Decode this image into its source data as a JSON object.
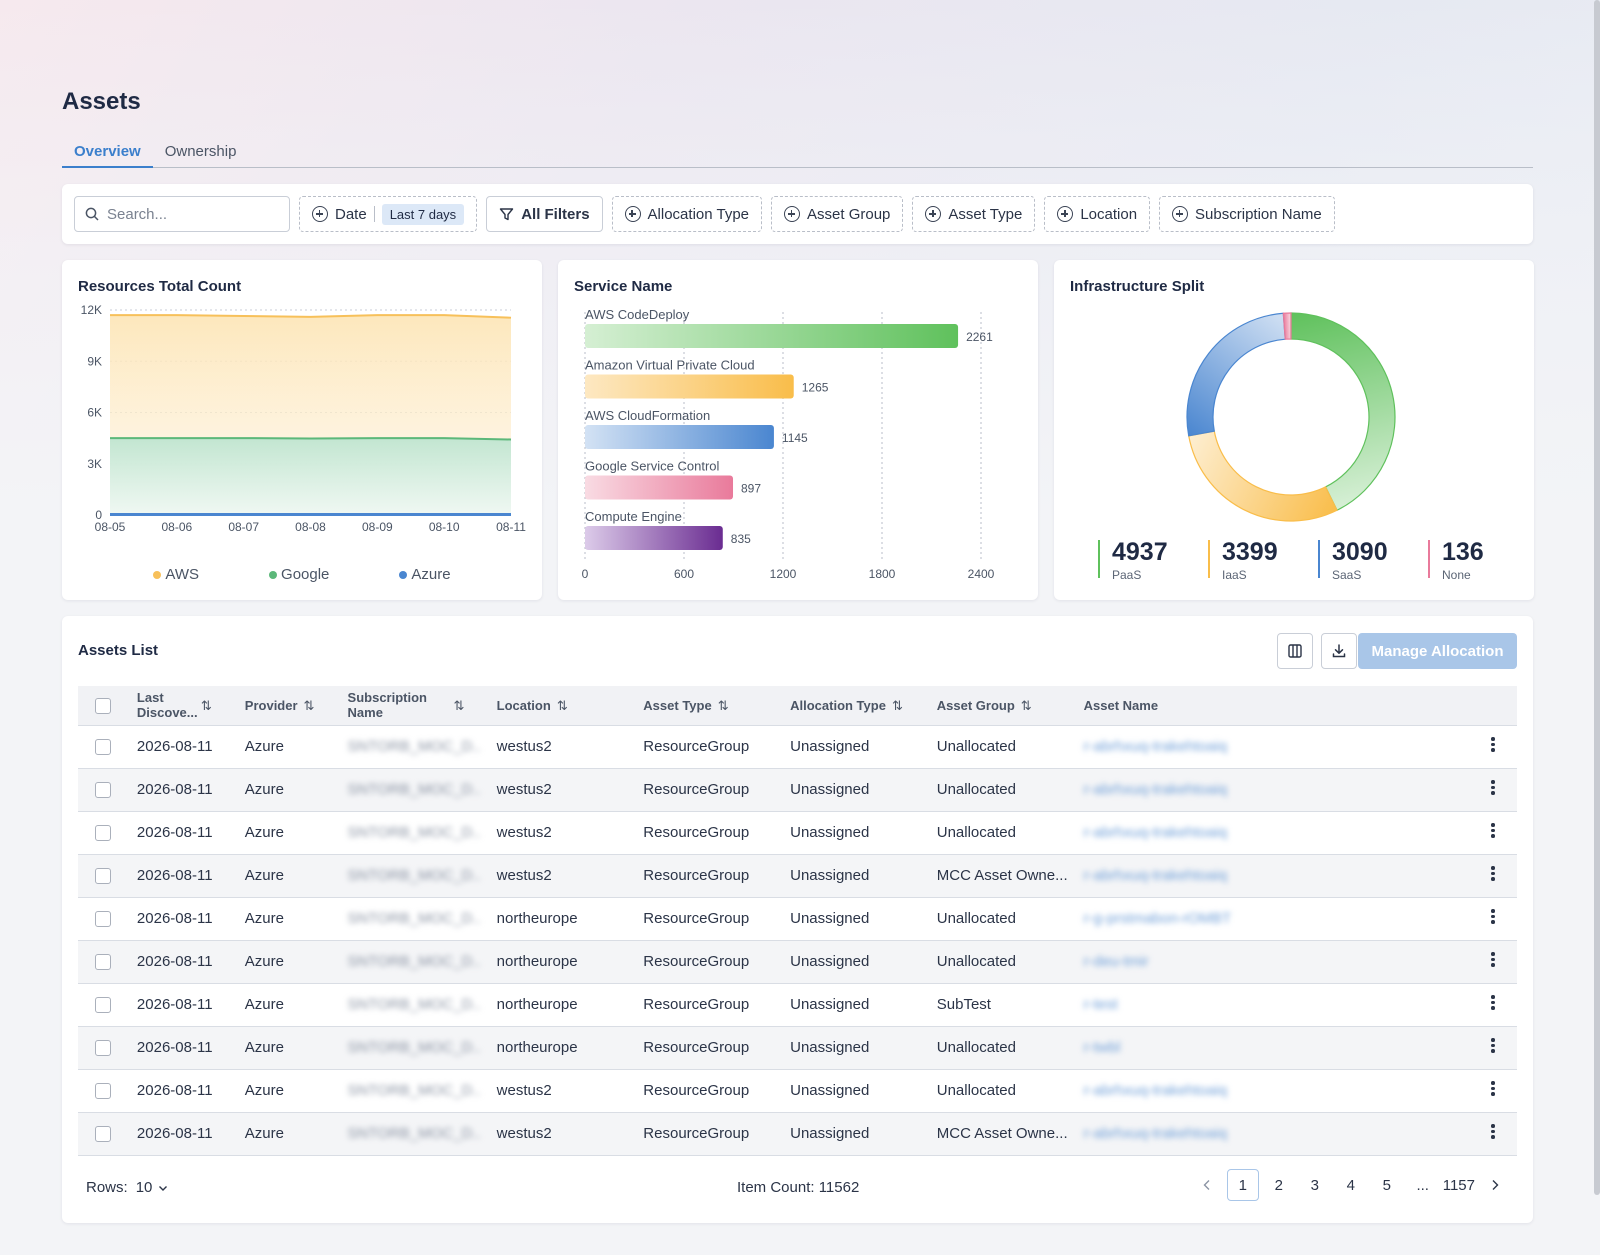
{
  "page": {
    "title": "Assets"
  },
  "tabs": [
    {
      "label": "Overview",
      "active": true
    },
    {
      "label": "Ownership",
      "active": false
    }
  ],
  "filters": {
    "search_placeholder": "Search...",
    "date_label": "Date",
    "date_value": "Last 7 days",
    "all_filters": "All Filters",
    "chips": [
      "Allocation Type",
      "Asset Group",
      "Asset Type",
      "Location",
      "Subscription Name"
    ]
  },
  "resources_chart": {
    "title": "Resources Total Count",
    "chart_data": {
      "type": "area",
      "x": [
        "08-05",
        "08-06",
        "08-07",
        "08-08",
        "08-09",
        "08-10",
        "08-11"
      ],
      "y_ticks": [
        "0",
        "3K",
        "6K",
        "9K",
        "12K"
      ],
      "ylim": [
        0,
        12000
      ],
      "series": [
        {
          "name": "AWS",
          "color": "#f7c05a",
          "values": [
            11700,
            11700,
            11650,
            11600,
            11700,
            11700,
            11550
          ]
        },
        {
          "name": "Google",
          "color": "#5cb87a",
          "values": [
            4500,
            4500,
            4500,
            4480,
            4500,
            4500,
            4420
          ]
        },
        {
          "name": "Azure",
          "color": "#4a86d0",
          "values": [
            60,
            60,
            60,
            60,
            60,
            60,
            60
          ]
        }
      ]
    }
  },
  "service_chart": {
    "title": "Service Name",
    "chart_data": {
      "type": "bar",
      "orientation": "horizontal",
      "categories": [
        "AWS CodeDeploy",
        "Amazon Virtual Private Cloud",
        "AWS CloudFormation",
        "Google Service Control",
        "Compute Engine"
      ],
      "values": [
        2261,
        1265,
        1145,
        897,
        835
      ],
      "value_labels": [
        "2261",
        "1265",
        "1145",
        "897",
        "835"
      ],
      "x_ticks": [
        "0",
        "600",
        "1200",
        "1800",
        "2400"
      ],
      "xlim": [
        0,
        2400
      ],
      "colors": [
        [
          "#d5efd3",
          "#5fc15c"
        ],
        [
          "#fde8c2",
          "#f9bd4a"
        ],
        [
          "#d3e2f4",
          "#4a86d0"
        ],
        [
          "#f9dbe3",
          "#e97a9b"
        ],
        [
          "#dccbe9",
          "#6a2c91"
        ]
      ]
    }
  },
  "infra_chart": {
    "title": "Infrastructure Split",
    "chart_data": {
      "type": "pie",
      "labels": [
        "PaaS",
        "IaaS",
        "SaaS",
        "None"
      ],
      "values": [
        4937,
        3399,
        3090,
        136
      ],
      "value_labels": [
        "4937",
        "3399",
        "3090",
        "136"
      ],
      "colors": [
        "#5fc15c",
        "#f9bd4a",
        "#4a86d0",
        "#e97a9b"
      ]
    }
  },
  "assets_list": {
    "title": "Assets List",
    "manage_label": "Manage Allocation",
    "columns": [
      "Last Discove...",
      "Provider",
      "Subscription Name",
      "Location",
      "Asset Type",
      "Allocation Type",
      "Asset Group",
      "Asset Name"
    ],
    "rows": [
      {
        "date": "2026-08-11",
        "provider": "Azure",
        "subscription": "SNTORB_MOC_D..",
        "location": "westus2",
        "asset_type": "ResourceGroup",
        "allocation": "Unassigned",
        "group": "Unallocated",
        "name": "r-abrhxuq-trakehtoaiq"
      },
      {
        "date": "2026-08-11",
        "provider": "Azure",
        "subscription": "SNTORB_MOC_D..",
        "location": "westus2",
        "asset_type": "ResourceGroup",
        "allocation": "Unassigned",
        "group": "Unallocated",
        "name": "r-abrhxuq-trakehtoaiq"
      },
      {
        "date": "2026-08-11",
        "provider": "Azure",
        "subscription": "SNTORB_MOC_D..",
        "location": "westus2",
        "asset_type": "ResourceGroup",
        "allocation": "Unassigned",
        "group": "Unallocated",
        "name": "r-abrhxuq-trakehtoaiq"
      },
      {
        "date": "2026-08-11",
        "provider": "Azure",
        "subscription": "SNTORB_MOC_D..",
        "location": "westus2",
        "asset_type": "ResourceGroup",
        "allocation": "Unassigned",
        "group": "MCC Asset Owne...",
        "name": "r-abrhxuq-trakehtoaiq"
      },
      {
        "date": "2026-08-11",
        "provider": "Azure",
        "subscription": "SNTORB_MOC_D..",
        "location": "northeurope",
        "asset_type": "ResourceGroup",
        "allocation": "Unassigned",
        "group": "Unallocated",
        "name": "r-g-prstmabon-rOMBT"
      },
      {
        "date": "2026-08-11",
        "provider": "Azure",
        "subscription": "SNTORB_MOC_D..",
        "location": "northeurope",
        "asset_type": "ResourceGroup",
        "allocation": "Unassigned",
        "group": "Unallocated",
        "name": "r-deu-tmir"
      },
      {
        "date": "2026-08-11",
        "provider": "Azure",
        "subscription": "SNTORB_MOC_D..",
        "location": "northeurope",
        "asset_type": "ResourceGroup",
        "allocation": "Unassigned",
        "group": "SubTest",
        "name": "r-test"
      },
      {
        "date": "2026-08-11",
        "provider": "Azure",
        "subscription": "SNTORB_MOC_D..",
        "location": "northeurope",
        "asset_type": "ResourceGroup",
        "allocation": "Unassigned",
        "group": "Unallocated",
        "name": "r-twbl"
      },
      {
        "date": "2026-08-11",
        "provider": "Azure",
        "subscription": "SNTORB_MOC_D..",
        "location": "westus2",
        "asset_type": "ResourceGroup",
        "allocation": "Unassigned",
        "group": "Unallocated",
        "name": "r-abrhxuq-trakehtoaiq"
      },
      {
        "date": "2026-08-11",
        "provider": "Azure",
        "subscription": "SNTORB_MOC_D..",
        "location": "westus2",
        "asset_type": "ResourceGroup",
        "allocation": "Unassigned",
        "group": "MCC Asset Owne...",
        "name": "r-abrhxuq-trakehtoaiq"
      }
    ],
    "footer": {
      "rows_label": "Rows:",
      "rows_value": "10",
      "item_count": "Item Count: 11562",
      "pages": [
        "1",
        "2",
        "3",
        "4",
        "5",
        "...",
        "1157"
      ],
      "current_page": "1"
    }
  }
}
